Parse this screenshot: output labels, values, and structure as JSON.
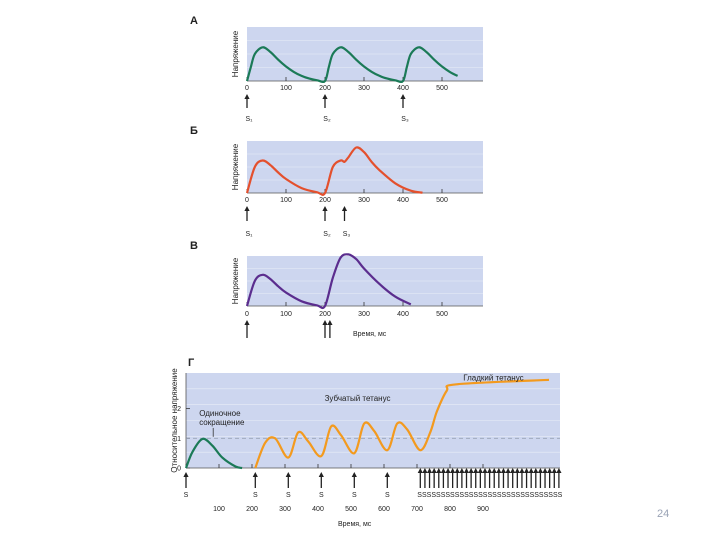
{
  "page_number": "24",
  "chart_data": [
    {
      "type": "line",
      "panel": "А",
      "ylabel": "Напряжение",
      "xlabel": "",
      "color": "#1b7a57",
      "xlim": [
        0,
        600
      ],
      "ylim": [
        0,
        1.6
      ],
      "ticks": [
        "0",
        "100",
        "200",
        "300",
        "400",
        "500"
      ],
      "tick_values": [
        0,
        100,
        200,
        300,
        400,
        500
      ],
      "stimuli": [
        {
          "t": 0,
          "label": "S₁"
        },
        {
          "t": 200,
          "label": "S₂"
        },
        {
          "t": 400,
          "label": "S₃"
        }
      ],
      "twitches": [
        {
          "start": 0,
          "peak": 1.0
        },
        {
          "start": 200,
          "peak": 1.0
        },
        {
          "start": 400,
          "peak": 1.0
        }
      ],
      "series": [
        {
          "name": "Напряжение",
          "x": [
            0,
            10,
            20,
            40,
            60,
            80,
            100,
            120,
            140,
            160,
            180,
            200,
            210,
            220,
            240,
            260,
            280,
            300,
            320,
            340,
            360,
            380,
            400,
            410,
            420,
            440,
            460,
            480,
            500,
            520,
            540
          ],
          "values": [
            0,
            0.42,
            0.8,
            1.0,
            0.86,
            0.63,
            0.43,
            0.27,
            0.15,
            0.07,
            0.02,
            0,
            0.42,
            0.8,
            1.0,
            0.86,
            0.63,
            0.43,
            0.27,
            0.15,
            0.07,
            0.02,
            0,
            0.42,
            0.8,
            1.0,
            0.86,
            0.63,
            0.43,
            0.27,
            0.15
          ]
        }
      ]
    },
    {
      "type": "line",
      "panel": "Б",
      "ylabel": "Напряжение",
      "xlabel": "",
      "color": "#e4502d",
      "xlim": [
        0,
        600
      ],
      "ylim": [
        0,
        1.6
      ],
      "ticks": [
        "0",
        "100",
        "200",
        "300",
        "400",
        "500"
      ],
      "tick_values": [
        0,
        100,
        200,
        300,
        400,
        500
      ],
      "stimuli": [
        {
          "t": 0,
          "label": "S₁"
        },
        {
          "t": 200,
          "label": "S₂"
        },
        {
          "t": 250,
          "label": "S₃"
        }
      ],
      "twitches": [
        {
          "start": 0,
          "peak": 1.0
        },
        {
          "start": 200,
          "peak": 1.0
        },
        {
          "start": 250,
          "peak": 1.0
        }
      ],
      "series": [
        {
          "name": "Напряжение",
          "x": [
            0,
            20,
            40,
            60,
            80,
            100,
            140,
            180,
            200,
            220,
            240,
            250,
            260,
            280,
            300,
            320,
            340,
            380,
            420,
            450
          ],
          "values": [
            0,
            0.8,
            1.0,
            0.86,
            0.63,
            0.43,
            0.15,
            0.02,
            0,
            0.8,
            1.0,
            0.96,
            1.1,
            1.4,
            1.26,
            0.95,
            0.7,
            0.3,
            0.07,
            0.01
          ]
        }
      ]
    },
    {
      "type": "line",
      "panel": "В",
      "ylabel": "Напряжение",
      "xlabel": "Время, мс",
      "color": "#5b2d8e",
      "xlim": [
        0,
        600
      ],
      "ylim": [
        0,
        1.6
      ],
      "ticks": [
        "0",
        "100",
        "200",
        "300",
        "400",
        "500"
      ],
      "tick_values": [
        0,
        100,
        200,
        300,
        400,
        500
      ],
      "stimuli": [
        {
          "t": 0,
          "label": ""
        },
        {
          "t": 200,
          "label": ""
        },
        {
          "t": 210,
          "label": ""
        }
      ],
      "twitches": [
        {
          "start": 0,
          "peak": 1.0
        },
        {
          "start": 200,
          "peak": 1.0
        },
        {
          "start": 210,
          "peak": 1.0
        }
      ],
      "series": [
        {
          "name": "Напряжение",
          "x": [
            0,
            20,
            40,
            60,
            80,
            100,
            140,
            180,
            200,
            220,
            240,
            260,
            280,
            300,
            340,
            380,
            420
          ],
          "values": [
            0,
            0.8,
            1.0,
            0.86,
            0.63,
            0.43,
            0.15,
            0.02,
            0,
            0.9,
            1.55,
            1.65,
            1.5,
            1.2,
            0.7,
            0.3,
            0.05
          ]
        }
      ]
    },
    {
      "type": "line",
      "panel": "Г",
      "ylabel": "Относительное напряжение",
      "xlabel": "Время, мс",
      "colors": {
        "single": "#1b7a57",
        "summation": "#f39a1e",
        "reference_line": "#9aa3b5"
      },
      "xlim": [
        0,
        1130
      ],
      "ylim": [
        0,
        3.2
      ],
      "yticks": [
        "0",
        "1",
        "2"
      ],
      "ytick_values": [
        0,
        1,
        2
      ],
      "reference_level": 1,
      "ticks": [
        "S",
        "100",
        "200",
        "300",
        "400",
        "500",
        "600",
        "700",
        "800",
        "900"
      ],
      "tick_values": [
        0,
        100,
        200,
        300,
        400,
        500,
        600,
        700,
        800,
        900
      ],
      "s_row": {
        "single_labels": [
          "S",
          "S",
          "S",
          "S",
          "S",
          "S"
        ],
        "train_label": "SSSSSSSSSSSSSSSSSSSSSSSSSSSSSSS"
      },
      "stimuli_single": [
        0,
        210,
        310,
        410,
        510,
        610
      ],
      "stimuli_train_start": 710,
      "stimuli_train_end": 1130,
      "stimuli_train_count": 31,
      "annotations": [
        {
          "text": "Одиночное",
          "x": 40,
          "y": 1.75
        },
        {
          "text": "сокращение",
          "x": 40,
          "y": 1.45
        },
        {
          "text": "Зубчатый тетанус",
          "x": 420,
          "y": 2.25
        },
        {
          "text": "Гладкий тетанус",
          "x": 840,
          "y": 2.95
        }
      ],
      "series": [
        {
          "name": "Одиночное сокращение",
          "x": [
            0,
            20,
            50,
            80,
            110,
            150,
            170
          ],
          "values": [
            0,
            0.55,
            0.98,
            0.75,
            0.35,
            0.05,
            0
          ]
        },
        {
          "name": "Зубчатый тетанус",
          "x": [
            210,
            240,
            270,
            310,
            340,
            370,
            410,
            440,
            470,
            510,
            540,
            570,
            610,
            640,
            670,
            710,
            740,
            760,
            790,
            820,
            1100
          ],
          "values": [
            0,
            0.85,
            1.0,
            0.35,
            1.2,
            0.9,
            0.4,
            1.4,
            1.1,
            0.5,
            1.5,
            1.25,
            0.6,
            1.5,
            1.3,
            0.6,
            1.2,
            1.9,
            2.6,
            2.82,
            2.97
          ]
        }
      ]
    }
  ]
}
